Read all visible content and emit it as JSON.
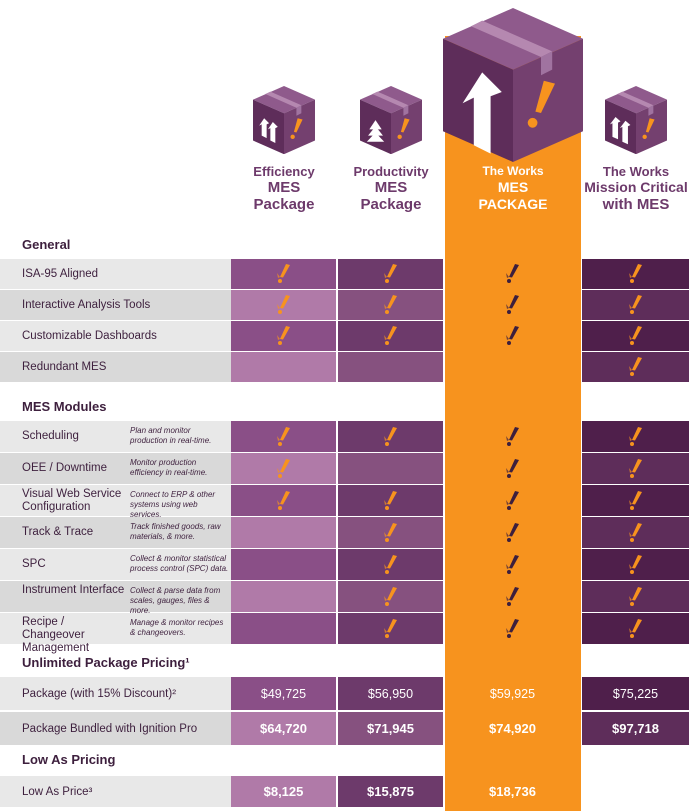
{
  "colors": {
    "label_bg_a": "#e8e8e8",
    "label_bg_b": "#d9d9d9",
    "efficiency_a": "#8a4f87",
    "efficiency_b": "#b07aa8",
    "productivity_a": "#6d3a6b",
    "productivity_b": "#86517f",
    "works": "#f7931e",
    "works_dark": "#e9871a",
    "mission_a": "#4f1f4b",
    "mission_b": "#5e2d5a",
    "check_orange": "#f7931e",
    "check_dark": "#3d1f3d",
    "text_dark": "#3d1f3d",
    "header_purple": "#6d3a6b"
  },
  "columns": [
    {
      "line1": "Efficiency",
      "line2": "MES",
      "line3": "Package",
      "icon": "box-two-arrows-icon"
    },
    {
      "line1": "Productivity",
      "line2": "MES",
      "line3": "Package",
      "icon": "box-tree-arrows-icon"
    },
    {
      "line1": "The Works",
      "line2": "MES",
      "line3": "PACKAGE",
      "icon": "box-big-arrow-icon"
    },
    {
      "line1": "The Works",
      "line2": "Mission Critical",
      "line3": "with MES",
      "icon": "box-double-arrow-icon"
    }
  ],
  "sections": {
    "general": "General",
    "modules": "MES Modules",
    "unlimited": "Unlimited Package Pricing¹",
    "low_as": "Low As Pricing"
  },
  "general_rows": [
    {
      "label": "ISA-95 Aligned",
      "checks": [
        true,
        true,
        true,
        true
      ]
    },
    {
      "label": "Interactive Analysis Tools",
      "checks": [
        true,
        true,
        true,
        true
      ]
    },
    {
      "label": "Customizable Dashboards",
      "checks": [
        true,
        true,
        true,
        true
      ]
    },
    {
      "label": "Redundant MES",
      "checks": [
        false,
        false,
        false,
        true
      ]
    }
  ],
  "module_rows": [
    {
      "label": "Scheduling",
      "desc": "Plan and monitor production in real-time.",
      "checks": [
        true,
        true,
        true,
        true
      ]
    },
    {
      "label": "OEE / Downtime",
      "desc": "Monitor production efficiency in real-time.",
      "checks": [
        true,
        false,
        true,
        true
      ]
    },
    {
      "label": "Visual Web Service Configuration",
      "desc": "Connect to ERP & other systems using web services.",
      "checks": [
        true,
        true,
        true,
        true
      ]
    },
    {
      "label": "Track & Trace",
      "desc": "Track finished goods, raw materials, & more.",
      "checks": [
        false,
        true,
        true,
        true
      ]
    },
    {
      "label": "SPC",
      "desc": "Collect & monitor statistical process control (SPC) data.",
      "checks": [
        false,
        true,
        true,
        true
      ]
    },
    {
      "label": "Instrument Interface",
      "desc": "Collect & parse data from scales, gauges, files & more.",
      "checks": [
        false,
        true,
        true,
        true
      ]
    },
    {
      "label": "Recipe / Changeover Management",
      "desc": "Manage & monitor recipes & changeovers.",
      "checks": [
        false,
        true,
        true,
        true
      ]
    }
  ],
  "pricing_rows": [
    {
      "label": "Package (with 15% Discount)²",
      "prices": [
        "$49,725",
        "$56,950",
        "$59,925",
        "$75,225"
      ],
      "bold": false
    },
    {
      "label": "Package Bundled with Ignition Pro",
      "prices": [
        "$64,720",
        "$71,945",
        "$74,920",
        "$97,718"
      ],
      "bold": true
    }
  ],
  "low_rows": [
    {
      "label": "Low As Price³",
      "prices": [
        "$8,125",
        "$15,875",
        "$18,736",
        ""
      ]
    }
  ]
}
